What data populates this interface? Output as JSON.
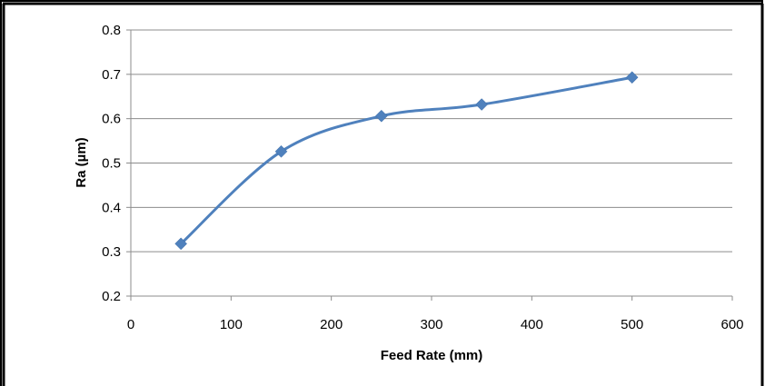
{
  "chart_data": {
    "type": "line",
    "title": "",
    "xlabel": "Feed Rate (mm)",
    "ylabel": "Ra (µm)",
    "xlim": [
      0,
      600
    ],
    "ylim": [
      0.2,
      0.8
    ],
    "x_ticks": [
      0,
      100,
      200,
      300,
      400,
      500,
      600
    ],
    "y_ticks": [
      0.2,
      0.3,
      0.4,
      0.5,
      0.6,
      0.7,
      0.8
    ],
    "x_tick_labels": [
      "0",
      "100",
      "200",
      "300",
      "400",
      "500",
      "600"
    ],
    "y_tick_labels": [
      "0.2",
      "0.3",
      "0.4",
      "0.5",
      "0.6",
      "0.7",
      "0.8"
    ],
    "grid": "horizontal",
    "legend": "none",
    "series": [
      {
        "x": [
          50,
          150,
          250,
          350,
          500
        ],
        "y": [
          0.318,
          0.526,
          0.606,
          0.632,
          0.693
        ],
        "marker": "diamond",
        "smooth": true
      }
    ],
    "colors": {
      "series": "#4F81BD",
      "grid": "#8C8C8C",
      "frame": "#000000"
    }
  }
}
